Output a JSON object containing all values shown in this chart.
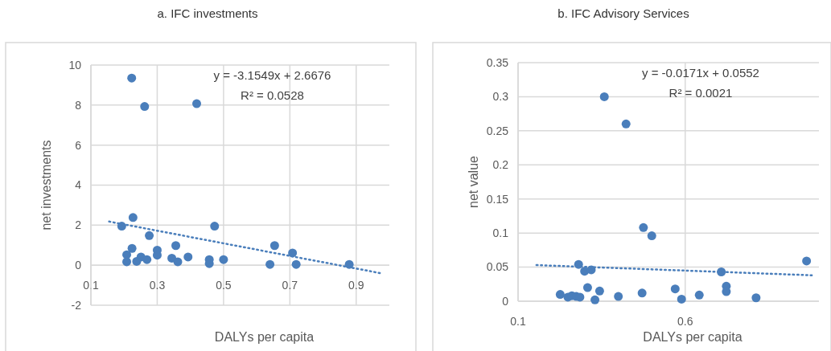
{
  "chart_data": [
    {
      "type": "scatter",
      "title": "a. IFC investments",
      "xlabel": "DALYs per capita",
      "ylabel": "net investments",
      "xlim": [
        0.1,
        1.0
      ],
      "xticks": [
        0.1,
        0.3,
        0.5,
        0.7,
        0.9
      ],
      "ylim": [
        -2,
        10
      ],
      "yticks": [
        -2,
        0,
        2,
        4,
        6,
        8,
        10
      ],
      "grid": true,
      "marker": "circle",
      "annotations": [
        "y = -3.1549x + 2.6676",
        "R² = 0.0528"
      ],
      "series": [
        {
          "type": "scatter",
          "color": "#4a7ebb",
          "x": [
            0.223,
            0.262,
            0.419,
            0.227,
            0.193,
            0.473,
            0.276,
            0.356,
            0.654,
            0.708,
            0.224,
            0.208,
            0.3,
            0.3,
            0.344,
            0.393,
            0.362,
            0.251,
            0.269,
            0.238,
            0.208,
            0.457,
            0.457,
            0.5,
            0.64,
            0.719,
            0.879
          ],
          "values": [
            9.35,
            7.93,
            8.07,
            2.38,
            1.95,
            1.95,
            1.48,
            0.98,
            0.98,
            0.61,
            0.84,
            0.52,
            0.75,
            0.5,
            0.35,
            0.41,
            0.17,
            0.41,
            0.28,
            0.19,
            0.17,
            0.28,
            0.08,
            0.28,
            0.04,
            0.04,
            0.04
          ]
        },
        {
          "type": "line",
          "color": "#4a7ebb",
          "line_style": "dotted",
          "marker": "none",
          "x": [
            0.155,
            0.98
          ],
          "values": [
            2.18,
            -0.42
          ]
        }
      ]
    },
    {
      "type": "scatter",
      "title": "b. IFC Advisory Services",
      "xlabel": "DALYs per capita",
      "ylabel": "net value",
      "xlim": [
        0.1,
        1.0
      ],
      "xticks": [
        0.1,
        0.6
      ],
      "ylim": [
        0,
        0.35
      ],
      "yticks": [
        0,
        0.05,
        0.1,
        0.15,
        0.2,
        0.25,
        0.3,
        0.35
      ],
      "grid": true,
      "marker": "circle",
      "annotations": [
        "y = -0.0171x + 0.0552",
        "R² = 0.0021"
      ],
      "series": [
        {
          "type": "scatter",
          "color": "#4a7ebb",
          "x": [
            0.358,
            0.423,
            0.475,
            0.5,
            0.281,
            0.299,
            0.319,
            0.708,
            0.963,
            0.308,
            0.344,
            0.57,
            0.723,
            0.723,
            0.226,
            0.249,
            0.261,
            0.274,
            0.285,
            0.33,
            0.4,
            0.471,
            0.589,
            0.642,
            0.812
          ],
          "values": [
            0.3,
            0.26,
            0.108,
            0.096,
            0.054,
            0.044,
            0.046,
            0.043,
            0.059,
            0.02,
            0.015,
            0.018,
            0.022,
            0.014,
            0.01,
            0.006,
            0.008,
            0.007,
            0.006,
            0.002,
            0.007,
            0.012,
            0.003,
            0.009,
            0.005
          ]
        },
        {
          "type": "line",
          "color": "#4a7ebb",
          "line_style": "dotted",
          "marker": "none",
          "x": [
            0.155,
            0.98
          ],
          "values": [
            0.053,
            0.038
          ]
        }
      ]
    }
  ]
}
